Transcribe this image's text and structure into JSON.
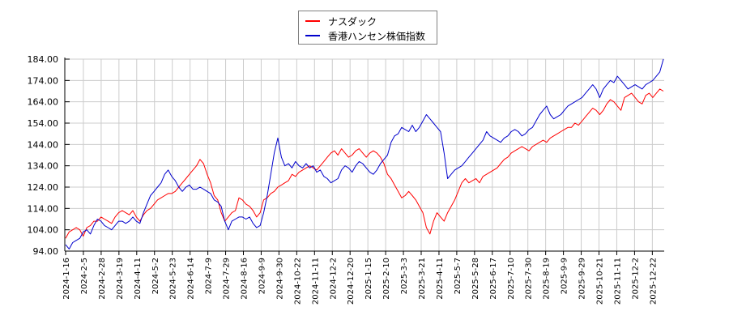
{
  "chart_data": {
    "type": "line",
    "title": "",
    "xlabel": "",
    "ylabel": "",
    "ylim": [
      94,
      184
    ],
    "grid": true,
    "legend_position": "top-center",
    "yticks": [
      "184.00",
      "174.00",
      "164.00",
      "154.00",
      "144.00",
      "134.00",
      "124.00",
      "114.00",
      "104.00",
      "94.00"
    ],
    "xticks": [
      "2024-1-16",
      "2024-2-5",
      "2024-2-28",
      "2024-3-19",
      "2024-4-11",
      "2024-5-2",
      "2024-5-23",
      "2024-6-14",
      "2024-7-9",
      "2024-7-29",
      "2024-8-16",
      "2024-9-9",
      "2024-9-30",
      "2024-10-22",
      "2024-11-11",
      "2024-12-2",
      "2024-12-20",
      "2025-1-15",
      "2025-2-10",
      "2025-3-3",
      "2025-3-21",
      "2025-4-11",
      "2025-5-7",
      "2025-5-28",
      "2025-6-17",
      "2025-7-10",
      "2025-7-30",
      "2025-8-19",
      "2025-9-9",
      "2025-9-29",
      "2025-10-21",
      "2025-11-11",
      "2025-12-2",
      "2025-12-22"
    ],
    "series": [
      {
        "name": "ナスダック",
        "color": "#ff0000",
        "values": [
          100,
          103,
          104,
          105,
          104,
          101,
          105,
          106,
          108,
          108,
          110,
          109,
          108,
          107,
          110,
          112,
          113,
          112,
          111,
          113,
          110,
          108,
          111,
          113,
          114,
          116,
          118,
          119,
          120,
          121,
          121,
          122,
          124,
          126,
          128,
          130,
          132,
          134,
          137,
          135,
          130,
          126,
          120,
          118,
          112,
          108,
          110,
          112,
          113,
          119,
          118,
          116,
          115,
          113,
          110,
          112,
          118,
          119,
          121,
          122,
          124,
          125,
          126,
          127,
          130,
          129,
          131,
          132,
          133,
          134,
          133,
          132,
          134,
          136,
          138,
          140,
          141,
          139,
          142,
          140,
          138,
          139,
          141,
          142,
          140,
          138,
          140,
          141,
          140,
          138,
          135,
          130,
          128,
          125,
          122,
          119,
          120,
          122,
          120,
          118,
          115,
          112,
          105,
          102,
          108,
          112,
          110,
          108,
          112,
          115,
          118,
          122,
          126,
          128,
          126,
          127,
          128,
          126,
          129,
          130,
          131,
          132,
          133,
          135,
          137,
          138,
          140,
          141,
          142,
          143,
          142,
          141,
          143,
          144,
          145,
          146,
          145,
          147,
          148,
          149,
          150,
          151,
          152,
          152,
          154,
          153,
          155,
          157,
          159,
          161,
          160,
          158,
          160,
          163,
          165,
          164,
          162,
          160,
          166,
          167,
          168,
          166,
          164,
          163,
          167,
          168,
          166,
          168,
          170,
          169
        ]
      },
      {
        "name": "香港ハンセン株価指数",
        "color": "#0000cc",
        "values": [
          97,
          95,
          98,
          99,
          100,
          103,
          104,
          102,
          106,
          109,
          108,
          106,
          105,
          104,
          106,
          108,
          108,
          107,
          108,
          110,
          108,
          107,
          112,
          116,
          120,
          122,
          124,
          126,
          130,
          132,
          129,
          127,
          124,
          122,
          124,
          125,
          123,
          123,
          124,
          123,
          122,
          121,
          118,
          117,
          115,
          108,
          104,
          108,
          109,
          110,
          110,
          109,
          110,
          107,
          105,
          106,
          112,
          120,
          130,
          140,
          147,
          138,
          134,
          135,
          133,
          136,
          134,
          133,
          135,
          133,
          134,
          131,
          132,
          129,
          128,
          126,
          127,
          128,
          132,
          134,
          133,
          131,
          134,
          136,
          135,
          133,
          131,
          130,
          132,
          135,
          137,
          139,
          145,
          148,
          149,
          152,
          151,
          150,
          153,
          150,
          152,
          155,
          158,
          156,
          154,
          152,
          150,
          140,
          128,
          130,
          132,
          133,
          134,
          136,
          138,
          140,
          142,
          144,
          146,
          150,
          148,
          147,
          146,
          145,
          147,
          148,
          150,
          151,
          150,
          148,
          149,
          151,
          152,
          155,
          158,
          160,
          162,
          158,
          156,
          157,
          158,
          160,
          162,
          163,
          164,
          165,
          166,
          168,
          170,
          172,
          170,
          166,
          170,
          172,
          174,
          173,
          176,
          174,
          172,
          170,
          171,
          172,
          171,
          170,
          172,
          173,
          174,
          176,
          178,
          184
        ]
      }
    ]
  },
  "legend": {
    "items": [
      {
        "label": "ナスダック",
        "color": "#ff0000"
      },
      {
        "label": "香港ハンセン株価指数",
        "color": "#0000cc"
      }
    ]
  }
}
